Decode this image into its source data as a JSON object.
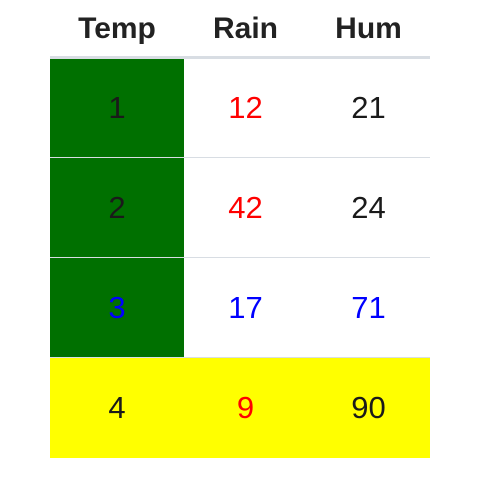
{
  "table": {
    "headers": [
      "Temp",
      "Rain",
      "Hum"
    ],
    "rows": [
      {
        "row_bg": null,
        "cells": [
          {
            "value": "1",
            "color": "#1a1a1a",
            "bg": "#007000"
          },
          {
            "value": "12",
            "color": "#ff0000",
            "bg": null
          },
          {
            "value": "21",
            "color": "#1a1a1a",
            "bg": null
          }
        ]
      },
      {
        "row_bg": null,
        "cells": [
          {
            "value": "2",
            "color": "#1a1a1a",
            "bg": "#007000"
          },
          {
            "value": "42",
            "color": "#ff0000",
            "bg": null
          },
          {
            "value": "24",
            "color": "#1a1a1a",
            "bg": null
          }
        ]
      },
      {
        "row_bg": null,
        "cells": [
          {
            "value": "3",
            "color": "#0000ff",
            "bg": "#007000"
          },
          {
            "value": "17",
            "color": "#0000ff",
            "bg": null
          },
          {
            "value": "71",
            "color": "#0000ff",
            "bg": null
          }
        ]
      },
      {
        "row_bg": "#ffff00",
        "cells": [
          {
            "value": "4",
            "color": "#1a1a1a",
            "bg": null
          },
          {
            "value": "9",
            "color": "#ff0000",
            "bg": null
          },
          {
            "value": "90",
            "color": "#1a1a1a",
            "bg": null
          }
        ]
      }
    ]
  }
}
